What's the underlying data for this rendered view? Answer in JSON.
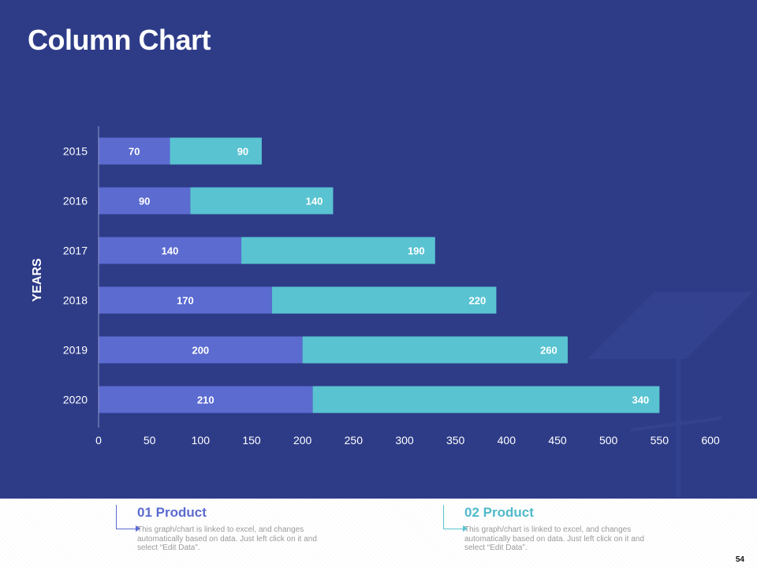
{
  "slide": {
    "title": "Column Chart",
    "page_number": "54"
  },
  "colors": {
    "background": "#2e3c88",
    "series1": "#5b6bd0",
    "series2": "#59c3d1",
    "text": "#ffffff"
  },
  "chart_data": {
    "type": "bar",
    "orientation": "horizontal",
    "stacked": true,
    "categories": [
      "2015",
      "2016",
      "2017",
      "2018",
      "2019",
      "2020"
    ],
    "series": [
      {
        "name": "01 Product",
        "values": [
          70,
          90,
          140,
          170,
          200,
          210
        ]
      },
      {
        "name": "02 Product",
        "values": [
          90,
          140,
          190,
          220,
          260,
          340
        ]
      }
    ],
    "title": "Column Chart",
    "ylabel": "YEARS",
    "xlabel": "",
    "xlim": [
      0,
      600
    ],
    "xticks": [
      "0",
      "50",
      "100",
      "150",
      "200",
      "250",
      "300",
      "350",
      "400",
      "450",
      "500",
      "550",
      "600"
    ],
    "grid": false
  },
  "footer": {
    "products": [
      {
        "title": "01 Product",
        "description": "This graph/chart is linked to excel, and changes automatically based on data. Just left click on it and select “Edit Data”."
      },
      {
        "title": "02 Product",
        "description": "This graph/chart is linked to excel, and changes automatically based on data. Just left click on it and select “Edit Data”."
      }
    ]
  }
}
